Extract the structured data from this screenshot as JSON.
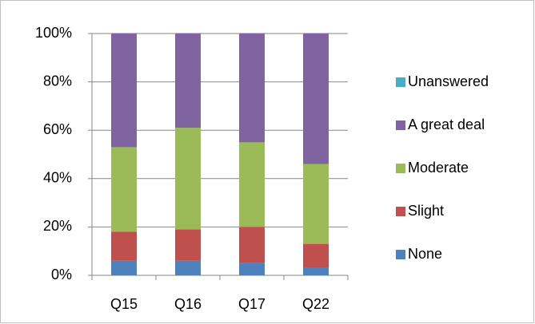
{
  "chart_data": {
    "type": "stacked_bar",
    "categories": [
      "Q15",
      "Q16",
      "Q17",
      "Q22"
    ],
    "series": [
      {
        "name": "None",
        "color": "#4f81bd",
        "values": [
          6,
          6,
          5,
          3
        ]
      },
      {
        "name": "Slight",
        "color": "#c0504d",
        "values": [
          12,
          13,
          15,
          10
        ]
      },
      {
        "name": "Moderate",
        "color": "#9bbb59",
        "values": [
          35,
          42,
          35,
          33
        ]
      },
      {
        "name": "A great deal",
        "color": "#8064a2",
        "values": [
          47,
          39,
          45,
          54
        ]
      },
      {
        "name": "Unanswered",
        "color": "#4bacc6",
        "values": [
          0,
          0,
          0,
          0
        ]
      }
    ],
    "ylim": [
      0,
      100
    ],
    "yticks": [
      {
        "value": 0,
        "label": "0%"
      },
      {
        "value": 20,
        "label": "20%"
      },
      {
        "value": 40,
        "label": "40%"
      },
      {
        "value": 60,
        "label": "60%"
      },
      {
        "value": 80,
        "label": "80%"
      },
      {
        "value": 100,
        "label": "100%"
      }
    ],
    "grid": true,
    "legend": "right"
  }
}
